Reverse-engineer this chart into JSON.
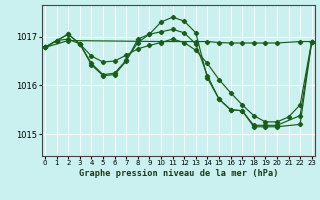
{
  "title": "Graphe pression niveau de la mer (hPa)",
  "background_color": "#caf0f0",
  "grid_color": "#ffffff",
  "line_color": "#1a5c1a",
  "ylabel_ticks": [
    1015,
    1016,
    1017
  ],
  "xticks": [
    0,
    1,
    2,
    3,
    4,
    5,
    6,
    7,
    8,
    9,
    10,
    11,
    12,
    13,
    14,
    15,
    16,
    17,
    18,
    19,
    20,
    21,
    22,
    23
  ],
  "ylim": [
    1014.55,
    1017.65
  ],
  "xlim": [
    -0.3,
    23.3
  ],
  "series_x": [
    [
      0,
      1,
      2,
      3,
      4,
      5,
      6,
      7,
      8,
      9,
      10,
      11,
      12,
      13,
      14,
      15,
      16,
      17,
      18,
      19,
      20,
      21,
      22,
      23
    ],
    [
      0,
      1,
      2,
      3,
      4,
      5,
      6,
      7,
      8,
      9,
      10,
      11,
      12,
      13,
      14,
      15,
      16,
      17,
      18,
      19,
      20,
      22,
      23
    ],
    [
      0,
      1,
      2,
      3,
      4,
      5,
      6,
      7,
      8,
      9,
      10,
      11,
      12,
      13,
      14,
      15,
      16,
      17,
      18,
      19,
      20,
      22,
      23
    ],
    [
      0,
      2,
      10,
      20,
      23
    ]
  ],
  "series_y": [
    [
      1016.78,
      1016.92,
      1016.95,
      1016.85,
      1016.6,
      1016.48,
      1016.5,
      1016.62,
      1016.75,
      1016.82,
      1016.88,
      1016.95,
      1016.88,
      1016.72,
      1016.45,
      1016.12,
      1015.85,
      1015.6,
      1015.38,
      1015.25,
      1015.25,
      1015.35,
      1015.6,
      1016.9
    ],
    [
      1016.78,
      1016.92,
      1017.05,
      1016.85,
      1016.42,
      1016.2,
      1016.22,
      1016.5,
      1016.95,
      1017.05,
      1017.1,
      1017.15,
      1017.08,
      1016.85,
      1016.2,
      1015.72,
      1015.5,
      1015.48,
      1015.18,
      1015.18,
      1015.18,
      1015.38,
      1016.9
    ],
    [
      1016.78,
      1016.92,
      1017.05,
      1016.85,
      1016.45,
      1016.22,
      1016.25,
      1016.52,
      1016.88,
      1017.05,
      1017.3,
      1017.4,
      1017.32,
      1017.08,
      1016.15,
      1015.72,
      1015.5,
      1015.48,
      1015.15,
      1015.15,
      1015.15,
      1015.2,
      1016.9
    ],
    [
      1016.78,
      1016.92,
      1016.9,
      1016.9,
      1016.9
    ]
  ]
}
